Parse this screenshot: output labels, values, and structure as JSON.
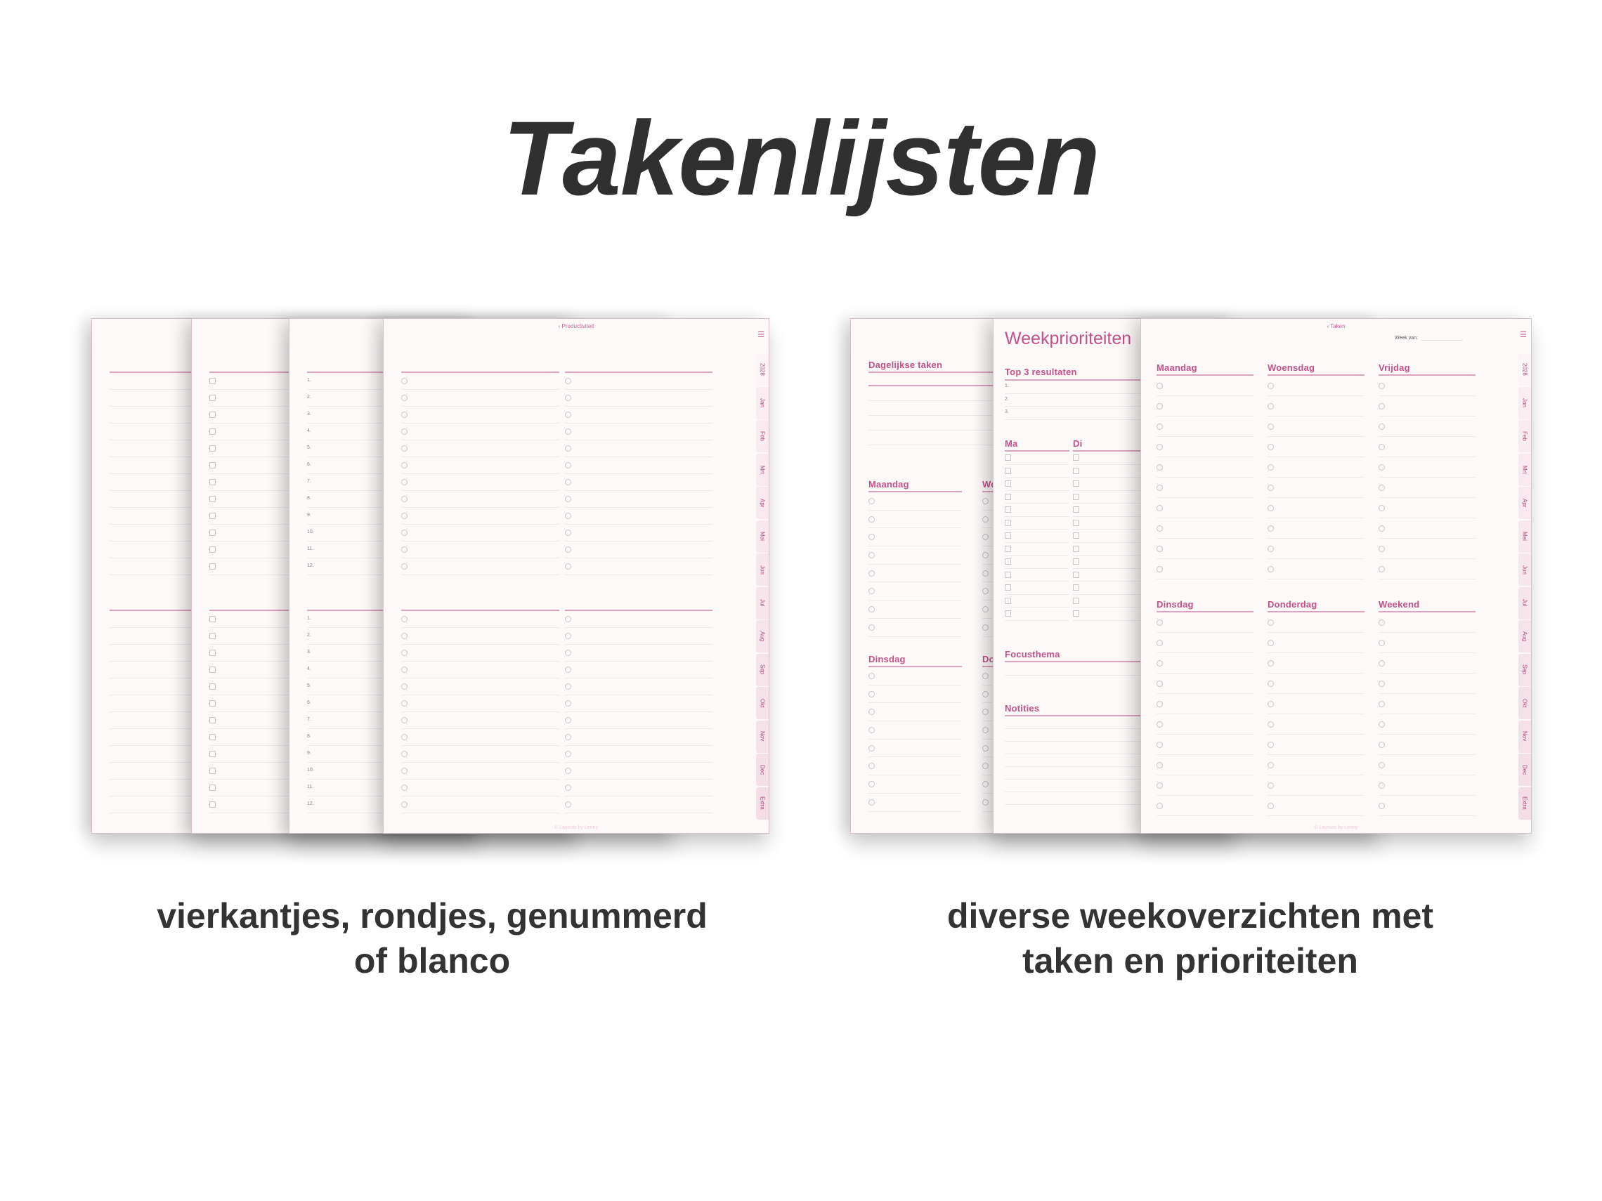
{
  "title": "Takenlijsten",
  "left_group": {
    "caption": [
      "vierkantjes, rondjes, genummerd",
      "of blanco"
    ],
    "front_page": {
      "back_link": "‹ Productiviteit",
      "menu_icon": "hamburger-menu-icon",
      "footer": "© Layouts by Lenny"
    },
    "numbered_labels": [
      "1.",
      "2.",
      "3.",
      "4.",
      "5.",
      "6.",
      "7.",
      "8.",
      "9.",
      "10.",
      "11.",
      "12."
    ]
  },
  "right_group": {
    "caption": [
      "diverse weekoverzichten met",
      "taken en prioriteiten"
    ],
    "daily_page": {
      "daily_heading": "Dagelijkse taken",
      "days": [
        "Maandag",
        "Woensdag",
        "Dinsdag",
        "Donderdag"
      ]
    },
    "priorities_page": {
      "title": "Weekprioriteiten",
      "top3_heading": "Top 3 resultaten",
      "top3_labels": [
        "1.",
        "2.",
        "3."
      ],
      "day_columns": [
        "Ma",
        "Di"
      ],
      "focus_heading": "Focusthema",
      "notes_heading": "Notities"
    },
    "week_page": {
      "back_link": "‹ Taken",
      "week_label": "Week van:",
      "days_top": [
        "Maandag",
        "Woensdag",
        "Vrijdag"
      ],
      "days_bottom": [
        "Dinsdag",
        "Donderdag",
        "Weekend"
      ],
      "footer": "© Layouts by Lenny"
    }
  },
  "tabs": [
    "2028",
    "Jan",
    "Feb",
    "Mrt",
    "Apr",
    "Mei",
    "Jun",
    "Jul",
    "Aug",
    "Sep",
    "Okt",
    "Nov",
    "Dec",
    "Extra"
  ],
  "colors": {
    "accent": "#c4508a",
    "rule": "#dca2c2",
    "paper": "#fdf9f9",
    "tab": "#f8ecf0",
    "text": "#303030"
  }
}
